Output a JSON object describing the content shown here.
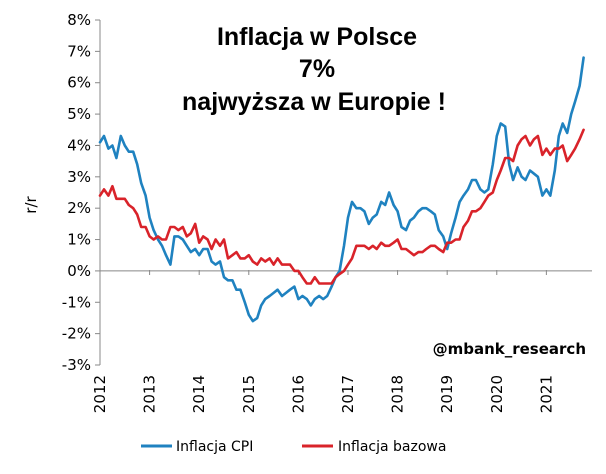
{
  "chart_data": {
    "type": "line",
    "title_lines": [
      "Inflacja w Polsce",
      "7%",
      "najwyższa w Europie !"
    ],
    "ylabel": "r/r",
    "xlabel": "",
    "ylim": [
      -3,
      8
    ],
    "y_ticks": [
      "8%",
      "7%",
      "6%",
      "5%",
      "4%",
      "3%",
      "2%",
      "1%",
      "0%",
      "-1%",
      "-2%",
      "-3%"
    ],
    "x_ticks": [
      "2012",
      "2013",
      "2014",
      "2015",
      "2016",
      "2017",
      "2018",
      "2019",
      "2020",
      "2021"
    ],
    "x_range": [
      2012.0,
      2021.92
    ],
    "grid": false,
    "legend_position": "bottom",
    "annotation": "@mbank_research",
    "series": [
      {
        "name": "Inflacja CPI",
        "color": "#1f82c0",
        "points": [
          [
            2012.0,
            4.1
          ],
          [
            2012.08,
            4.3
          ],
          [
            2012.17,
            3.9
          ],
          [
            2012.25,
            4.0
          ],
          [
            2012.33,
            3.6
          ],
          [
            2012.42,
            4.3
          ],
          [
            2012.5,
            4.0
          ],
          [
            2012.58,
            3.8
          ],
          [
            2012.67,
            3.8
          ],
          [
            2012.75,
            3.4
          ],
          [
            2012.83,
            2.8
          ],
          [
            2012.92,
            2.4
          ],
          [
            2013.0,
            1.7
          ],
          [
            2013.08,
            1.3
          ],
          [
            2013.17,
            1.0
          ],
          [
            2013.25,
            0.8
          ],
          [
            2013.33,
            0.5
          ],
          [
            2013.42,
            0.2
          ],
          [
            2013.5,
            1.1
          ],
          [
            2013.58,
            1.1
          ],
          [
            2013.67,
            1.0
          ],
          [
            2013.75,
            0.8
          ],
          [
            2013.83,
            0.6
          ],
          [
            2013.92,
            0.7
          ],
          [
            2014.0,
            0.5
          ],
          [
            2014.08,
            0.7
          ],
          [
            2014.17,
            0.7
          ],
          [
            2014.25,
            0.3
          ],
          [
            2014.33,
            0.2
          ],
          [
            2014.42,
            0.3
          ],
          [
            2014.5,
            -0.2
          ],
          [
            2014.58,
            -0.3
          ],
          [
            2014.67,
            -0.3
          ],
          [
            2014.75,
            -0.6
          ],
          [
            2014.83,
            -0.6
          ],
          [
            2014.92,
            -1.0
          ],
          [
            2015.0,
            -1.4
          ],
          [
            2015.08,
            -1.6
          ],
          [
            2015.17,
            -1.5
          ],
          [
            2015.25,
            -1.1
          ],
          [
            2015.33,
            -0.9
          ],
          [
            2015.42,
            -0.8
          ],
          [
            2015.5,
            -0.7
          ],
          [
            2015.58,
            -0.6
          ],
          [
            2015.67,
            -0.8
          ],
          [
            2015.75,
            -0.7
          ],
          [
            2015.83,
            -0.6
          ],
          [
            2015.92,
            -0.5
          ],
          [
            2016.0,
            -0.9
          ],
          [
            2016.08,
            -0.8
          ],
          [
            2016.17,
            -0.9
          ],
          [
            2016.25,
            -1.1
          ],
          [
            2016.33,
            -0.9
          ],
          [
            2016.42,
            -0.8
          ],
          [
            2016.5,
            -0.9
          ],
          [
            2016.58,
            -0.8
          ],
          [
            2016.67,
            -0.5
          ],
          [
            2016.75,
            -0.2
          ],
          [
            2016.83,
            0.0
          ],
          [
            2016.92,
            0.8
          ],
          [
            2017.0,
            1.7
          ],
          [
            2017.08,
            2.2
          ],
          [
            2017.17,
            2.0
          ],
          [
            2017.25,
            2.0
          ],
          [
            2017.33,
            1.9
          ],
          [
            2017.42,
            1.5
          ],
          [
            2017.5,
            1.7
          ],
          [
            2017.58,
            1.8
          ],
          [
            2017.67,
            2.2
          ],
          [
            2017.75,
            2.1
          ],
          [
            2017.83,
            2.5
          ],
          [
            2017.92,
            2.1
          ],
          [
            2018.0,
            1.9
          ],
          [
            2018.08,
            1.4
          ],
          [
            2018.17,
            1.3
          ],
          [
            2018.25,
            1.6
          ],
          [
            2018.33,
            1.7
          ],
          [
            2018.42,
            1.9
          ],
          [
            2018.5,
            2.0
          ],
          [
            2018.58,
            2.0
          ],
          [
            2018.67,
            1.9
          ],
          [
            2018.75,
            1.8
          ],
          [
            2018.83,
            1.3
          ],
          [
            2018.92,
            1.1
          ],
          [
            2019.0,
            0.7
          ],
          [
            2019.08,
            1.2
          ],
          [
            2019.17,
            1.7
          ],
          [
            2019.25,
            2.2
          ],
          [
            2019.33,
            2.4
          ],
          [
            2019.42,
            2.6
          ],
          [
            2019.5,
            2.9
          ],
          [
            2019.58,
            2.9
          ],
          [
            2019.67,
            2.6
          ],
          [
            2019.75,
            2.5
          ],
          [
            2019.83,
            2.6
          ],
          [
            2019.92,
            3.4
          ],
          [
            2020.0,
            4.3
          ],
          [
            2020.08,
            4.7
          ],
          [
            2020.17,
            4.6
          ],
          [
            2020.25,
            3.4
          ],
          [
            2020.33,
            2.9
          ],
          [
            2020.42,
            3.3
          ],
          [
            2020.5,
            3.0
          ],
          [
            2020.58,
            2.9
          ],
          [
            2020.67,
            3.2
          ],
          [
            2020.75,
            3.1
          ],
          [
            2020.83,
            3.0
          ],
          [
            2020.92,
            2.4
          ],
          [
            2021.0,
            2.6
          ],
          [
            2021.08,
            2.4
          ],
          [
            2021.17,
            3.2
          ],
          [
            2021.25,
            4.3
          ],
          [
            2021.33,
            4.7
          ],
          [
            2021.42,
            4.4
          ],
          [
            2021.5,
            5.0
          ],
          [
            2021.58,
            5.4
          ],
          [
            2021.67,
            5.9
          ],
          [
            2021.75,
            6.8
          ]
        ]
      },
      {
        "name": "Inflacja bazowa",
        "color": "#d9232a",
        "points": [
          [
            2012.0,
            2.4
          ],
          [
            2012.08,
            2.6
          ],
          [
            2012.17,
            2.4
          ],
          [
            2012.25,
            2.7
          ],
          [
            2012.33,
            2.3
          ],
          [
            2012.42,
            2.3
          ],
          [
            2012.5,
            2.3
          ],
          [
            2012.58,
            2.1
          ],
          [
            2012.67,
            2.0
          ],
          [
            2012.75,
            1.8
          ],
          [
            2012.83,
            1.4
          ],
          [
            2012.92,
            1.4
          ],
          [
            2013.0,
            1.1
          ],
          [
            2013.08,
            1.0
          ],
          [
            2013.17,
            1.1
          ],
          [
            2013.25,
            1.0
          ],
          [
            2013.33,
            1.0
          ],
          [
            2013.42,
            1.4
          ],
          [
            2013.5,
            1.4
          ],
          [
            2013.58,
            1.3
          ],
          [
            2013.67,
            1.4
          ],
          [
            2013.75,
            1.1
          ],
          [
            2013.83,
            1.2
          ],
          [
            2013.92,
            1.5
          ],
          [
            2014.0,
            0.9
          ],
          [
            2014.08,
            1.1
          ],
          [
            2014.17,
            1.0
          ],
          [
            2014.25,
            0.7
          ],
          [
            2014.33,
            1.0
          ],
          [
            2014.42,
            0.8
          ],
          [
            2014.5,
            1.0
          ],
          [
            2014.58,
            0.4
          ],
          [
            2014.67,
            0.5
          ],
          [
            2014.75,
            0.6
          ],
          [
            2014.83,
            0.4
          ],
          [
            2014.92,
            0.4
          ],
          [
            2015.0,
            0.5
          ],
          [
            2015.08,
            0.3
          ],
          [
            2015.17,
            0.2
          ],
          [
            2015.25,
            0.4
          ],
          [
            2015.33,
            0.3
          ],
          [
            2015.42,
            0.4
          ],
          [
            2015.5,
            0.2
          ],
          [
            2015.58,
            0.4
          ],
          [
            2015.67,
            0.2
          ],
          [
            2015.75,
            0.2
          ],
          [
            2015.83,
            0.2
          ],
          [
            2015.92,
            0.0
          ],
          [
            2016.0,
            0.0
          ],
          [
            2016.08,
            -0.2
          ],
          [
            2016.17,
            -0.4
          ],
          [
            2016.25,
            -0.4
          ],
          [
            2016.33,
            -0.2
          ],
          [
            2016.42,
            -0.4
          ],
          [
            2016.5,
            -0.4
          ],
          [
            2016.58,
            -0.4
          ],
          [
            2016.67,
            -0.4
          ],
          [
            2016.75,
            -0.2
          ],
          [
            2016.83,
            -0.1
          ],
          [
            2016.92,
            0.0
          ],
          [
            2017.0,
            0.2
          ],
          [
            2017.08,
            0.4
          ],
          [
            2017.17,
            0.8
          ],
          [
            2017.25,
            0.8
          ],
          [
            2017.33,
            0.8
          ],
          [
            2017.42,
            0.7
          ],
          [
            2017.5,
            0.8
          ],
          [
            2017.58,
            0.7
          ],
          [
            2017.67,
            0.9
          ],
          [
            2017.75,
            0.8
          ],
          [
            2017.83,
            0.8
          ],
          [
            2017.92,
            0.9
          ],
          [
            2018.0,
            1.0
          ],
          [
            2018.08,
            0.7
          ],
          [
            2018.17,
            0.7
          ],
          [
            2018.25,
            0.6
          ],
          [
            2018.33,
            0.5
          ],
          [
            2018.42,
            0.6
          ],
          [
            2018.5,
            0.6
          ],
          [
            2018.58,
            0.7
          ],
          [
            2018.67,
            0.8
          ],
          [
            2018.75,
            0.8
          ],
          [
            2018.83,
            0.7
          ],
          [
            2018.92,
            0.6
          ],
          [
            2019.0,
            0.9
          ],
          [
            2019.08,
            0.9
          ],
          [
            2019.17,
            1.0
          ],
          [
            2019.25,
            1.0
          ],
          [
            2019.33,
            1.4
          ],
          [
            2019.42,
            1.6
          ],
          [
            2019.5,
            1.9
          ],
          [
            2019.58,
            1.9
          ],
          [
            2019.67,
            2.0
          ],
          [
            2019.75,
            2.2
          ],
          [
            2019.83,
            2.4
          ],
          [
            2019.92,
            2.5
          ],
          [
            2020.0,
            2.9
          ],
          [
            2020.08,
            3.2
          ],
          [
            2020.17,
            3.6
          ],
          [
            2020.25,
            3.6
          ],
          [
            2020.33,
            3.5
          ],
          [
            2020.42,
            4.0
          ],
          [
            2020.5,
            4.2
          ],
          [
            2020.58,
            4.3
          ],
          [
            2020.67,
            4.0
          ],
          [
            2020.75,
            4.2
          ],
          [
            2020.83,
            4.3
          ],
          [
            2020.92,
            3.7
          ],
          [
            2021.0,
            3.9
          ],
          [
            2021.08,
            3.7
          ],
          [
            2021.17,
            3.9
          ],
          [
            2021.25,
            3.9
          ],
          [
            2021.33,
            4.0
          ],
          [
            2021.42,
            3.5
          ],
          [
            2021.5,
            3.7
          ],
          [
            2021.58,
            3.9
          ],
          [
            2021.67,
            4.2
          ],
          [
            2021.75,
            4.5
          ]
        ]
      }
    ]
  }
}
